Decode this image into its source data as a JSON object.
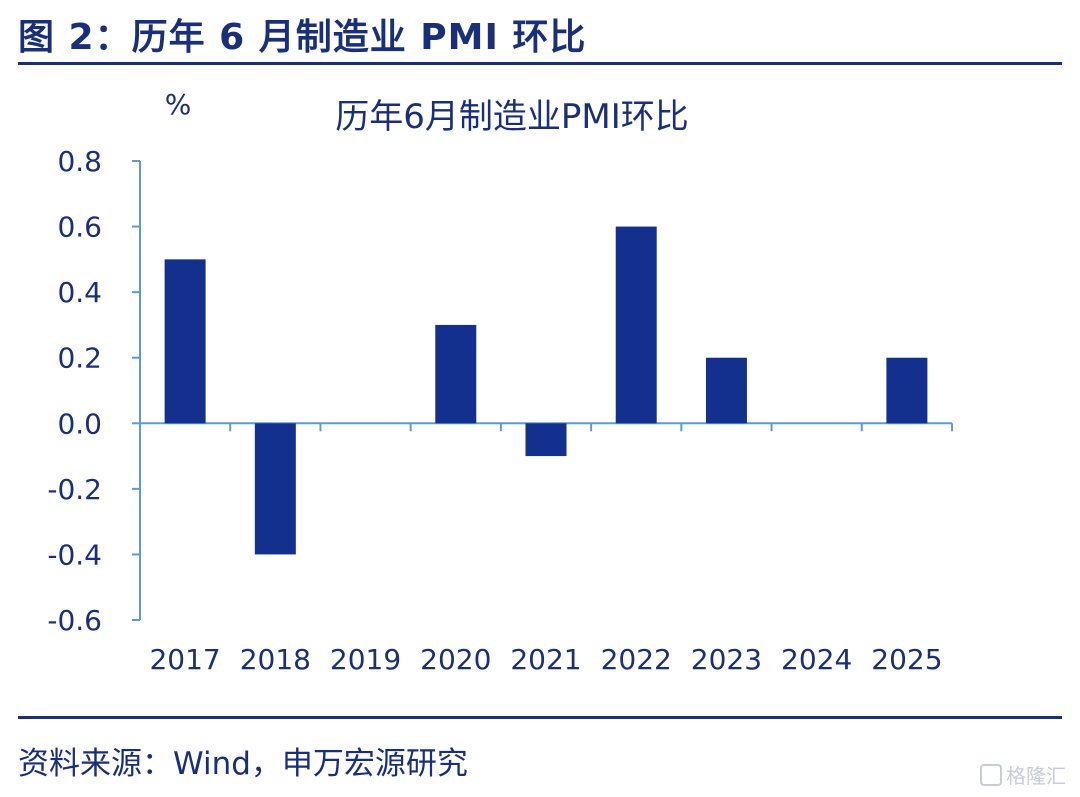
{
  "figure_title": "图 2：历年 6 月制造业 PMI 环比",
  "source": "资料来源：Wind，申万宏源研究",
  "watermark": "格隆汇",
  "colors": {
    "bar": "#13308f",
    "axis": "#5b9bd5",
    "text": "#1a2f7a"
  },
  "chart_data": {
    "type": "bar",
    "title": "历年6月制造业PMI环比",
    "ylabel": "%",
    "xlabel": "",
    "categories": [
      "2017",
      "2018",
      "2019",
      "2020",
      "2021",
      "2022",
      "2023",
      "2024",
      "2025"
    ],
    "values": [
      0.5,
      -0.4,
      0.0,
      0.3,
      -0.1,
      0.6,
      0.2,
      0.0,
      0.2
    ],
    "ylim": [
      -0.6,
      0.8
    ],
    "yticks": [
      "0.8",
      "0.6",
      "0.4",
      "0.2",
      "0.0",
      "-0.2",
      "-0.4",
      "-0.6"
    ],
    "grid": false,
    "legend": "none"
  }
}
